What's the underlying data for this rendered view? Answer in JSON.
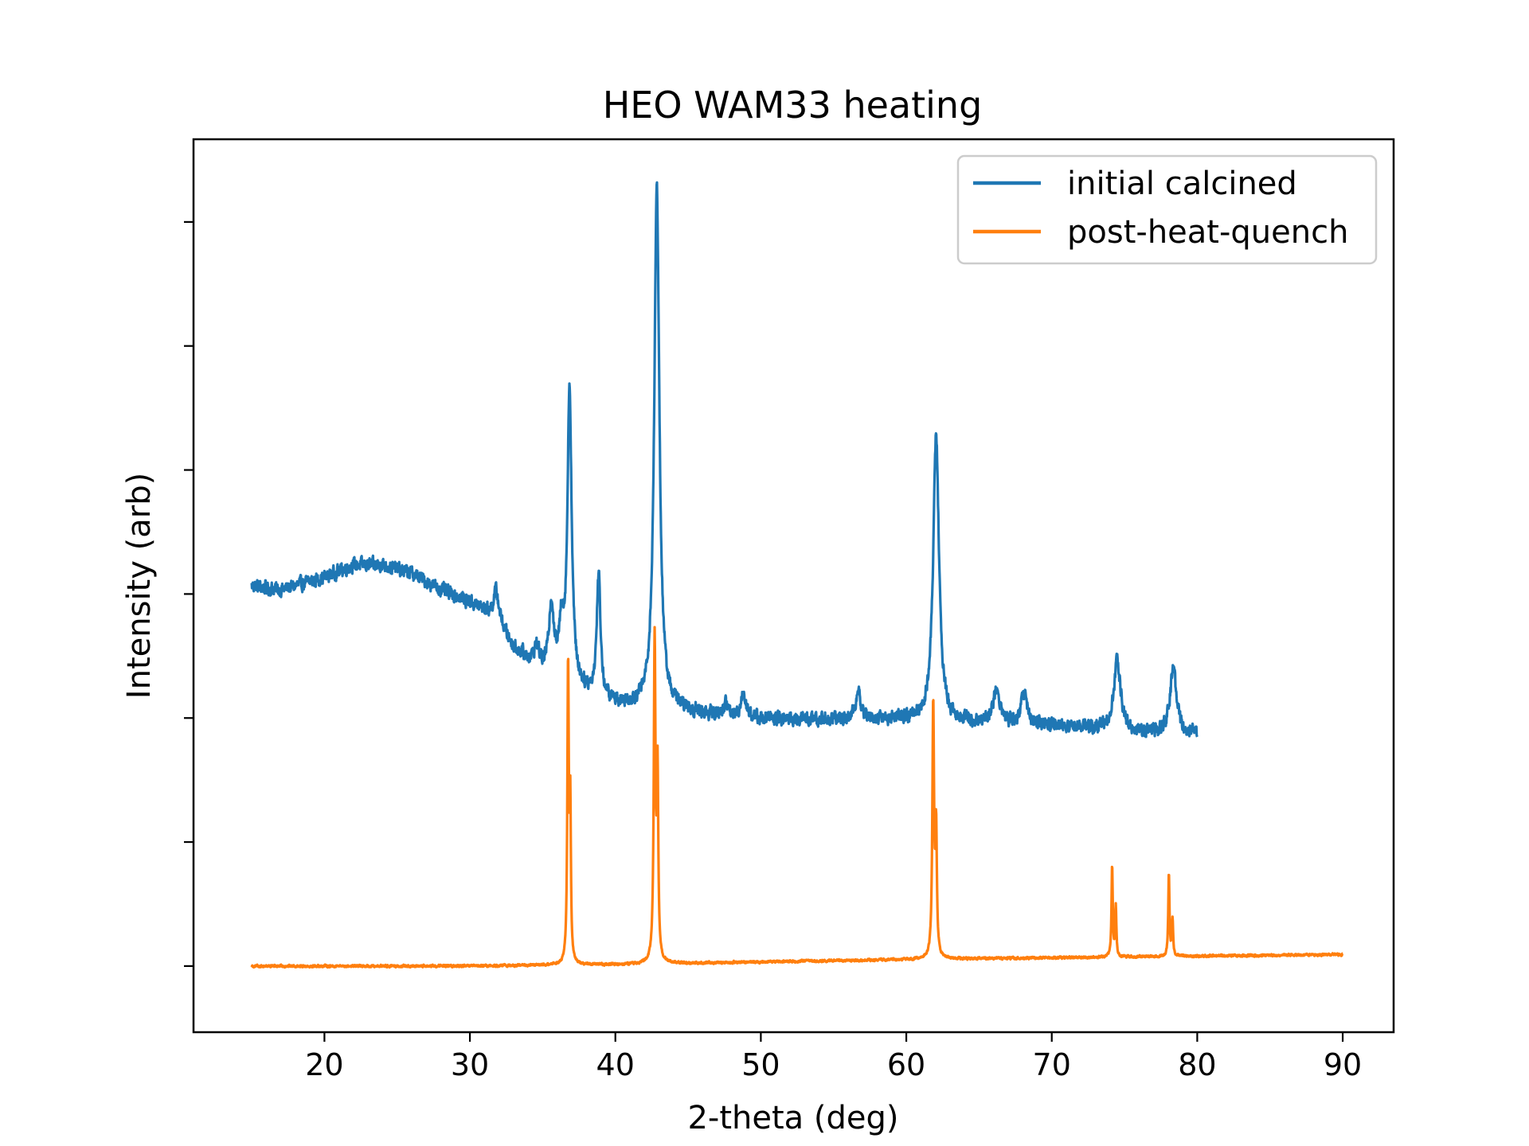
{
  "chart_data": {
    "type": "line",
    "title": "HEO WAM33 heating",
    "xlabel": "2-theta (deg)",
    "ylabel": "Intensity (arb)",
    "xlim": [
      11,
      93.5
    ],
    "ylim": [
      -0.08,
      1.0
    ],
    "xticks": [
      20,
      30,
      40,
      50,
      60,
      70,
      80,
      90
    ],
    "yticks_count": 7,
    "ytick_labels_shown": false,
    "grid": false,
    "legend_position": "top-right",
    "series": [
      {
        "name": "initial calcined",
        "color": "#1f77b4",
        "x_range": [
          15,
          80
        ],
        "noise": 0.012,
        "baseline": [
          [
            15,
            0.46
          ],
          [
            17,
            0.455
          ],
          [
            20,
            0.47
          ],
          [
            22,
            0.485
          ],
          [
            24,
            0.485
          ],
          [
            26,
            0.475
          ],
          [
            28,
            0.455
          ],
          [
            30,
            0.44
          ],
          [
            31,
            0.43
          ],
          [
            32,
            0.415
          ],
          [
            33,
            0.385
          ],
          [
            34,
            0.37
          ],
          [
            35,
            0.355
          ],
          [
            37,
            0.34
          ],
          [
            39,
            0.32
          ],
          [
            41,
            0.315
          ],
          [
            44,
            0.31
          ],
          [
            48,
            0.3
          ],
          [
            52,
            0.298
          ],
          [
            56,
            0.298
          ],
          [
            60,
            0.298
          ],
          [
            64,
            0.295
          ],
          [
            68,
            0.29
          ],
          [
            72,
            0.29
          ],
          [
            76,
            0.282
          ],
          [
            80,
            0.28
          ]
        ],
        "peaks": [
          {
            "center": 31.8,
            "height": 0.035,
            "width": 0.22
          },
          {
            "center": 34.6,
            "height": 0.025,
            "width": 0.2
          },
          {
            "center": 35.6,
            "height": 0.085,
            "width": 0.2
          },
          {
            "center": 36.3,
            "height": 0.06,
            "width": 0.18
          },
          {
            "center": 36.85,
            "height": 0.355,
            "width": 0.17
          },
          {
            "center": 38.85,
            "height": 0.15,
            "width": 0.16
          },
          {
            "center": 42.85,
            "height": 0.63,
            "width": 0.21
          },
          {
            "center": 47.6,
            "height": 0.015,
            "width": 0.2
          },
          {
            "center": 48.8,
            "height": 0.03,
            "width": 0.22
          },
          {
            "center": 56.7,
            "height": 0.03,
            "width": 0.25
          },
          {
            "center": 62.05,
            "height": 0.345,
            "width": 0.24
          },
          {
            "center": 66.2,
            "height": 0.04,
            "width": 0.3
          },
          {
            "center": 68.1,
            "height": 0.04,
            "width": 0.25
          },
          {
            "center": 74.5,
            "height": 0.085,
            "width": 0.27
          },
          {
            "center": 78.35,
            "height": 0.08,
            "width": 0.26
          }
        ]
      },
      {
        "name": "post-heat-quench",
        "color": "#ff7f0e",
        "x_range": [
          15,
          90
        ],
        "noise": 0.002,
        "baseline": [
          [
            15,
            0.0
          ],
          [
            30,
            0.0
          ],
          [
            40,
            0.002
          ],
          [
            50,
            0.005
          ],
          [
            60,
            0.008
          ],
          [
            70,
            0.01
          ],
          [
            80,
            0.012
          ],
          [
            90,
            0.014
          ]
        ],
        "peaks": [
          {
            "center": 36.75,
            "height": 0.36,
            "width": 0.06
          },
          {
            "center": 36.9,
            "height": 0.18,
            "width": 0.05
          },
          {
            "center": 42.7,
            "height": 0.39,
            "width": 0.07
          },
          {
            "center": 42.9,
            "height": 0.22,
            "width": 0.06
          },
          {
            "center": 61.85,
            "height": 0.305,
            "width": 0.07
          },
          {
            "center": 62.05,
            "height": 0.15,
            "width": 0.06
          },
          {
            "center": 74.15,
            "height": 0.11,
            "width": 0.05
          },
          {
            "center": 74.4,
            "height": 0.06,
            "width": 0.05
          },
          {
            "center": 78.05,
            "height": 0.1,
            "width": 0.05
          },
          {
            "center": 78.3,
            "height": 0.045,
            "width": 0.05
          }
        ]
      }
    ]
  }
}
